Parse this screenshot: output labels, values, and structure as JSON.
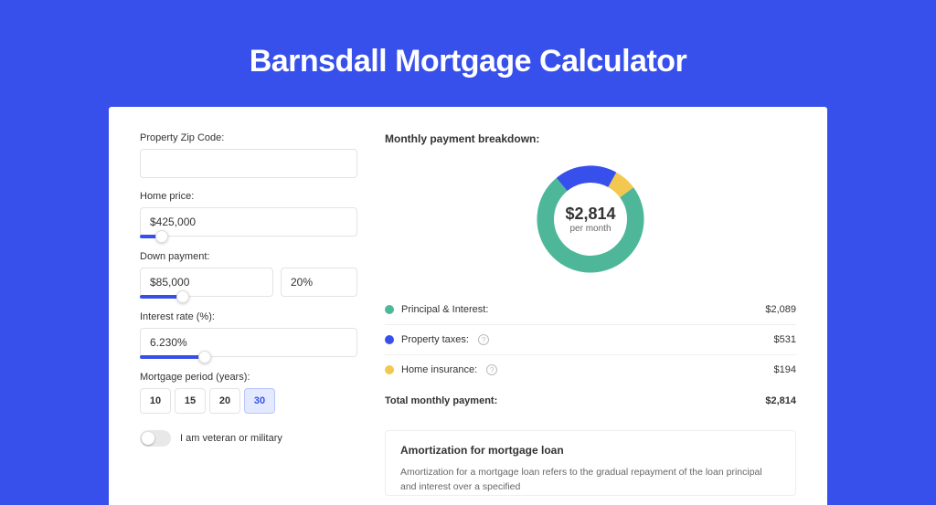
{
  "page_title": "Barnsdall Mortgage Calculator",
  "background_color": "#3750eb",
  "form": {
    "zip": {
      "label": "Property Zip Code:",
      "value": ""
    },
    "home_price": {
      "label": "Home price:",
      "value": "$425,000",
      "slider_percent": 10
    },
    "down_payment": {
      "label": "Down payment:",
      "value": "$85,000",
      "percent": "20%",
      "slider_percent": 20
    },
    "interest_rate": {
      "label": "Interest rate (%):",
      "value": "6.230%",
      "slider_percent": 30
    },
    "mortgage_period": {
      "label": "Mortgage period (years):",
      "options": [
        "10",
        "15",
        "20",
        "30"
      ],
      "selected": "30"
    },
    "veteran": {
      "label": "I am veteran or military",
      "on": false
    }
  },
  "breakdown": {
    "title": "Monthly payment breakdown:",
    "center_amount": "$2,814",
    "center_sub": "per month",
    "items": [
      {
        "label": "Principal & Interest:",
        "value": "$2,089",
        "color": "#4eb79a",
        "percent": 74,
        "info": false
      },
      {
        "label": "Property taxes:",
        "value": "$531",
        "color": "#3750eb",
        "percent": 19,
        "info": true
      },
      {
        "label": "Home insurance:",
        "value": "$194",
        "color": "#f3c850",
        "percent": 7,
        "info": true
      }
    ],
    "total_label": "Total monthly payment:",
    "total_value": "$2,814"
  },
  "donut_style": {
    "stroke_width": 18,
    "rotation_deg": -40
  },
  "amort": {
    "title": "Amortization for mortgage loan",
    "text": "Amortization for a mortgage loan refers to the gradual repayment of the loan principal and interest over a specified"
  }
}
